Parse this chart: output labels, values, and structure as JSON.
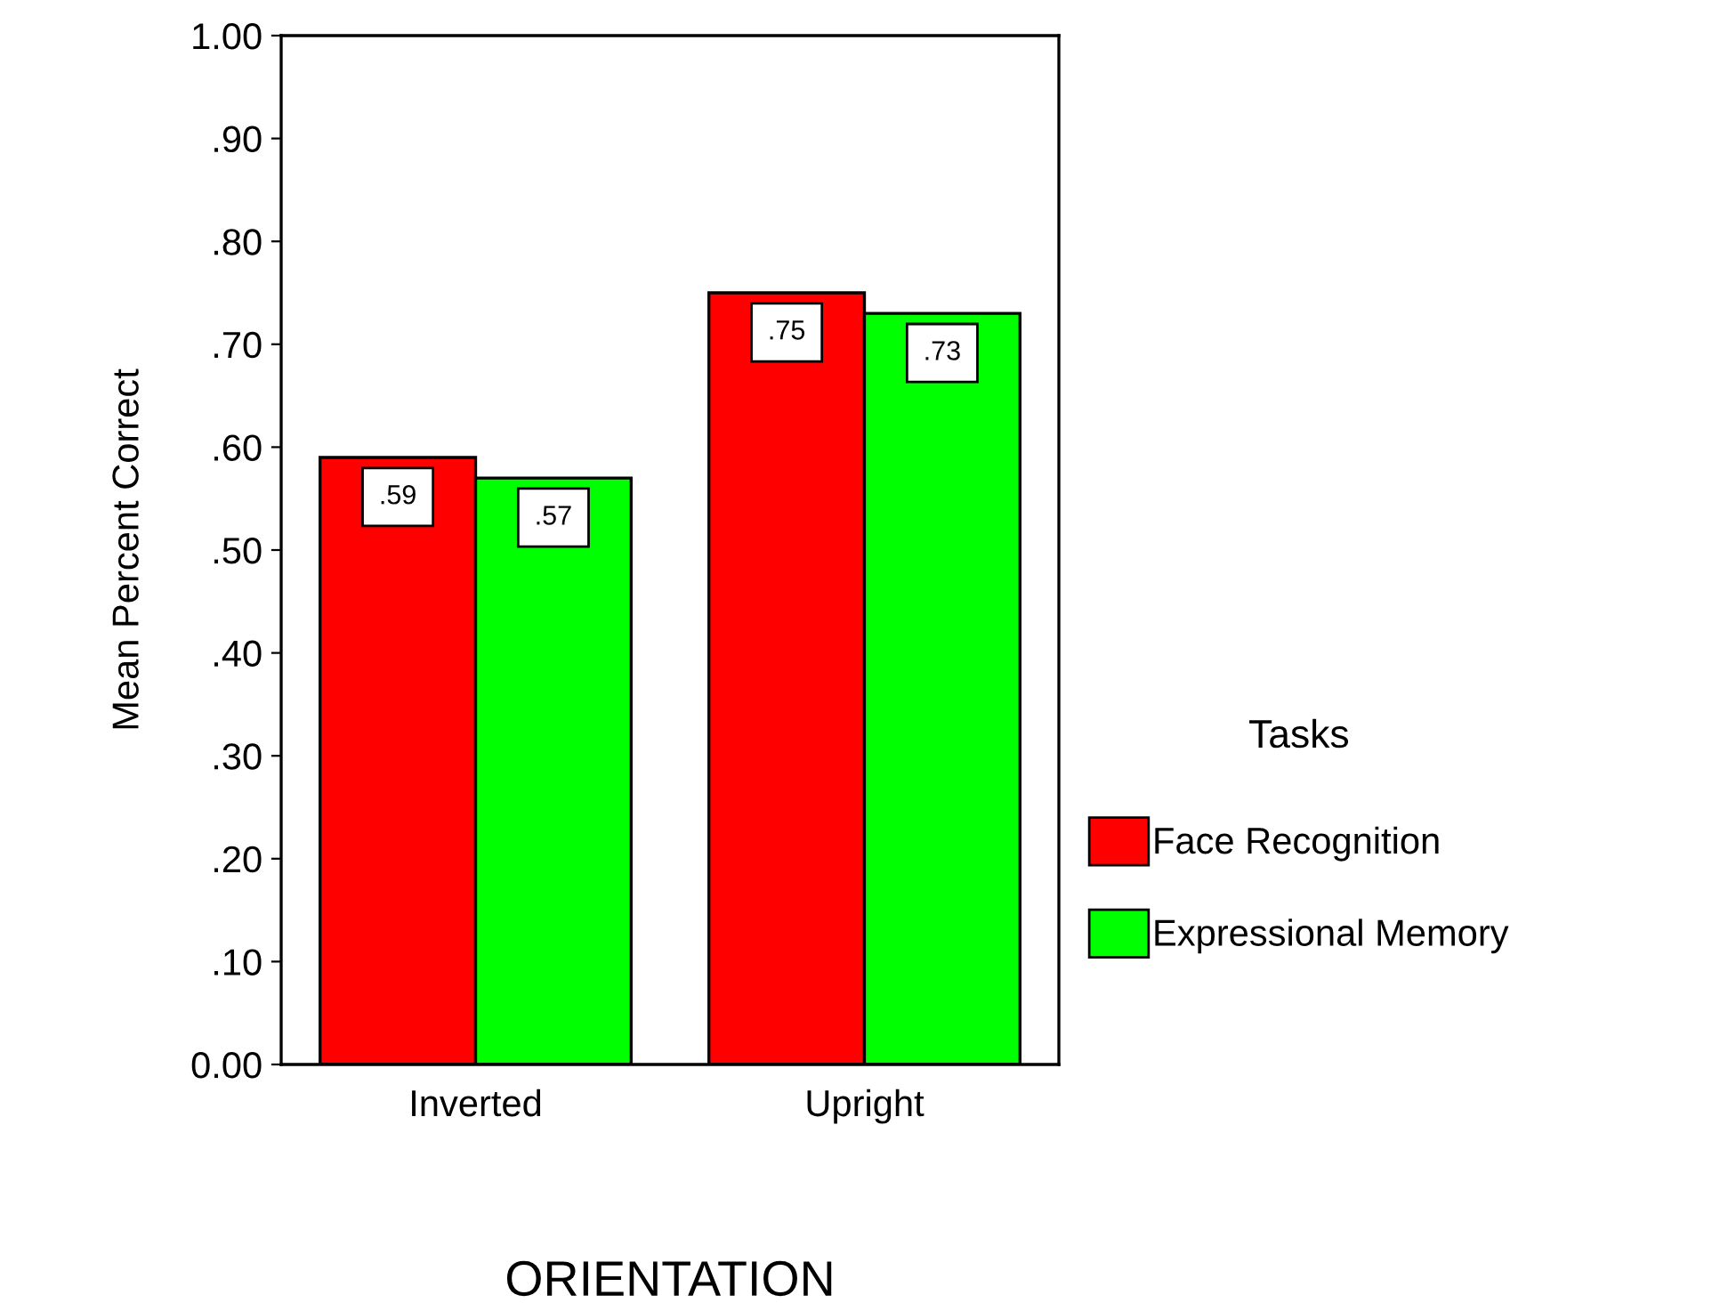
{
  "chart_data": {
    "type": "bar",
    "xlabel": "ORIENTATION",
    "ylabel": "Mean Percent Correct",
    "legend_title": "Tasks",
    "categories": [
      "Inverted",
      "Upright"
    ],
    "series": [
      {
        "name": "Face Recognition",
        "color": "#ff0000",
        "values": [
          0.59,
          0.75
        ],
        "value_labels": [
          ".59",
          ".75"
        ]
      },
      {
        "name": "Expressional Memory",
        "color": "#00ff00",
        "values": [
          0.57,
          0.73
        ],
        "value_labels": [
          ".57",
          ".73"
        ]
      }
    ],
    "ylim": [
      0,
      1
    ],
    "yticks": [
      {
        "value": 0,
        "label": "0.00"
      },
      {
        "value": 0.1,
        "label": ".10"
      },
      {
        "value": 0.2,
        "label": ".20"
      },
      {
        "value": 0.3,
        "label": ".30"
      },
      {
        "value": 0.4,
        "label": ".40"
      },
      {
        "value": 0.5,
        "label": ".50"
      },
      {
        "value": 0.6,
        "label": ".60"
      },
      {
        "value": 0.7,
        "label": ".70"
      },
      {
        "value": 0.8,
        "label": ".80"
      },
      {
        "value": 0.9,
        "label": ".90"
      },
      {
        "value": 1,
        "label": "1.00"
      }
    ],
    "legend": "right",
    "grid": false
  }
}
